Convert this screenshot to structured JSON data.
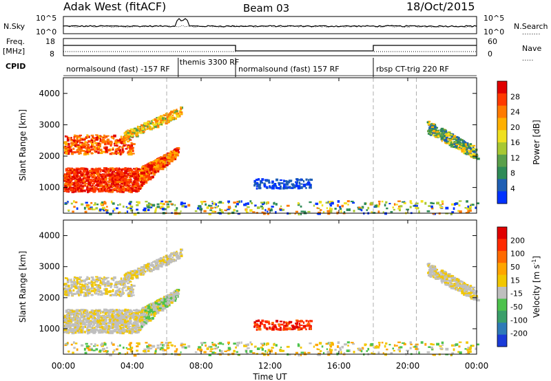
{
  "header": {
    "station": "Adak West (fitACF)",
    "beam": "Beam 03",
    "date": "18/Oct/2015"
  },
  "panels": {
    "nsky": {
      "left_label": "N.Sky",
      "right_label": "N.Search",
      "y_ticks": [
        "10^5",
        "10^0"
      ]
    },
    "freq": {
      "left_label_1": "Freq.",
      "left_label_2": "[MHz]",
      "y_ticks": [
        "18",
        "8"
      ],
      "right_label": "Nave",
      "right_ticks": [
        "60",
        "0"
      ]
    },
    "cpid": {
      "label": "CPID",
      "segments": [
        {
          "label": "normalsound (fast) -157 RF",
          "start_h": 0.0,
          "end_h": 6.67
        },
        {
          "label": "themis 3300 RF",
          "start_h": 6.67,
          "end_h": 10.0
        },
        {
          "label": "normalsound (fast) 157 RF",
          "start_h": 10.0,
          "end_h": 18.0
        },
        {
          "label": "rbsp CT-trig 220 RF",
          "start_h": 18.0,
          "end_h": 24.0
        }
      ]
    }
  },
  "x_axis": {
    "label": "Time UT",
    "ticks": [
      "00:00",
      "04:00",
      "08:00",
      "12:00",
      "16:00",
      "20:00",
      "00:00"
    ],
    "range_hours": [
      0,
      24
    ]
  },
  "colorbars": {
    "power": {
      "label": "Power [dB]",
      "ticks": [
        "28",
        "24",
        "20",
        "16",
        "12",
        "8",
        "4"
      ],
      "colors": [
        "#0032ff",
        "#1f5fb4",
        "#2e8b57",
        "#5aa04a",
        "#a8c832",
        "#f0e020",
        "#ffb000",
        "#ff7a00",
        "#ff3a00",
        "#e00000"
      ]
    },
    "velocity": {
      "label": "Velocity [m s^-1]",
      "ticks": [
        "200",
        "100",
        "50",
        "15",
        "-15",
        "-50",
        "-100",
        "-200"
      ],
      "colors": [
        "#1a3bd8",
        "#2e7ab8",
        "#3a9f6a",
        "#4dc24d",
        "#bfbfbf",
        "#f2c700",
        "#ffa500",
        "#ff6a00",
        "#ff2a00",
        "#e00000"
      ]
    }
  },
  "chart_data": [
    {
      "type": "heatmap",
      "title": "Power",
      "ylabel": "Slant Range [km]",
      "xlabel": "",
      "xlim_hours": [
        0,
        24
      ],
      "ylim_km": [
        180,
        4500
      ],
      "y_ticks": [
        1000,
        2000,
        3000,
        4000
      ],
      "scatter_regions": [
        {
          "t0": 0.0,
          "t1": 4.4,
          "r0": 900,
          "r1": 1650,
          "kind": "strong"
        },
        {
          "t0": 4.4,
          "t1": 6.6,
          "r0": 1050,
          "r1": 2300,
          "kind": "strong_rising"
        },
        {
          "t0": 0.0,
          "t1": 4.0,
          "r0": 2100,
          "r1": 2700,
          "kind": "medium"
        },
        {
          "t0": 3.5,
          "t1": 6.8,
          "r0": 2500,
          "r1": 3550,
          "kind": "band"
        },
        {
          "t0": 11.0,
          "t1": 14.3,
          "r0": 1000,
          "r1": 1300,
          "kind": "weak"
        },
        {
          "t0": 21.1,
          "t1": 24.0,
          "r0": 1900,
          "r1": 3200,
          "kind": "decreasing"
        },
        {
          "t0": 0.0,
          "t1": 24.0,
          "r0": 180,
          "r1": 600,
          "kind": "ground"
        }
      ],
      "dashed_lines_hours": [
        6.0,
        18.0,
        20.5
      ]
    },
    {
      "type": "heatmap",
      "title": "Velocity",
      "ylabel": "Slant Range [km]",
      "xlabel": "Time UT",
      "xlim_hours": [
        0,
        24
      ],
      "ylim_km": [
        180,
        4500
      ],
      "y_ticks": [
        1000,
        2000,
        3000,
        4000
      ],
      "dashed_lines_hours": [
        6.0,
        18.0,
        20.5
      ]
    }
  ]
}
